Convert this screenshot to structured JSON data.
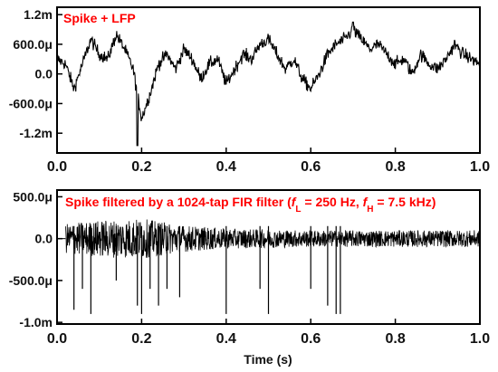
{
  "chart_data": [
    {
      "type": "line",
      "title": "Spike + LFP",
      "xlabel": "",
      "ylabel": "",
      "xlim": [
        0.0,
        1.0
      ],
      "ylim": [
        -0.0016,
        0.00135
      ],
      "x_ticks": [
        0.0,
        0.2,
        0.4,
        0.6,
        0.8,
        1.0
      ],
      "x_tick_labels": [
        "0.0",
        "0.2",
        "0.4",
        "0.6",
        "0.8",
        "1.0"
      ],
      "y_ticks": [
        0.0012,
        0.0006,
        0.0,
        -0.0006,
        -0.0012
      ],
      "y_tick_labels": [
        "1.2m",
        "600.0μ",
        "0.0",
        "-600.0μ",
        "-1.2m"
      ],
      "grid": false,
      "line_color": "#000000",
      "title_color": "#ff0000",
      "series": [
        {
          "x": [
            0.0,
            0.02,
            0.04,
            0.06,
            0.08,
            0.1,
            0.12,
            0.14,
            0.16,
            0.18,
            0.2,
            0.22,
            0.24,
            0.26,
            0.28,
            0.3,
            0.32,
            0.34,
            0.36,
            0.38,
            0.4,
            0.42,
            0.44,
            0.46,
            0.48,
            0.5,
            0.52,
            0.54,
            0.56,
            0.58,
            0.6,
            0.62,
            0.64,
            0.66,
            0.68,
            0.7,
            0.72,
            0.74,
            0.76,
            0.78,
            0.8,
            0.82,
            0.84,
            0.86,
            0.88,
            0.9,
            0.92,
            0.94,
            0.96,
            0.98,
            1.0
          ],
          "values": [
            0.0003,
            0.0002,
            -0.0003,
            0.0002,
            0.0007,
            0.0004,
            0.0003,
            0.0008,
            0.0005,
            0.0001,
            -0.0009,
            -0.0004,
            0.0002,
            0.0004,
            0.0001,
            0.0005,
            0.0003,
            -0.0001,
            0.0002,
            0.0003,
            -0.0002,
            0.0001,
            0.0004,
            0.0003,
            0.0006,
            0.0007,
            0.0004,
            0.0001,
            0.0003,
            -0.0001,
            -0.0003,
            0.0,
            0.0004,
            0.0006,
            0.0007,
            0.0009,
            0.0007,
            0.0005,
            0.0006,
            0.0004,
            0.0002,
            0.0003,
            0.0,
            0.0004,
            0.0002,
            0.0001,
            0.0003,
            0.0006,
            0.0004,
            0.0003,
            0.0002
          ]
        }
      ],
      "notes": {
        "min_excursion": {
          "x": 0.19,
          "y": -0.00145
        },
        "max_excursion": {
          "x": 0.7,
          "y": 0.00105
        }
      }
    },
    {
      "type": "line",
      "title_parts": [
        {
          "text": "Spike filtered by a 1024-tap FIR filter (",
          "style": "normal"
        },
        {
          "text": "f",
          "style": "italic"
        },
        {
          "text": "L",
          "style": "sub"
        },
        {
          "text": " = 250 Hz, ",
          "style": "normal"
        },
        {
          "text": "f",
          "style": "italic"
        },
        {
          "text": "H",
          "style": "sub"
        },
        {
          "text": " = 7.5 kHz)",
          "style": "normal"
        }
      ],
      "xlabel": "Time (s)",
      "ylabel": "",
      "xlim": [
        0.0,
        1.0
      ],
      "ylim": [
        -0.00102,
        0.00058
      ],
      "x_ticks": [
        0.0,
        0.2,
        0.4,
        0.6,
        0.8,
        1.0
      ],
      "x_tick_labels": [
        "0.0",
        "0.2",
        "0.4",
        "0.6",
        "0.8",
        "1.0"
      ],
      "y_ticks": [
        0.0005,
        0.0,
        -0.0005,
        -0.001
      ],
      "y_tick_labels": [
        "500.0μ",
        "0.0",
        "-500.0μ",
        "-1.0m"
      ],
      "grid": false,
      "line_color": "#000000",
      "title_color": "#ff0000",
      "noise_envelope": {
        "x": [
          0.02,
          0.1,
          0.2,
          0.3,
          0.4,
          0.5,
          0.6,
          0.7,
          0.8,
          0.9,
          1.0
        ],
        "amplitude": [
          0.00018,
          0.00022,
          0.00024,
          0.00016,
          0.00012,
          0.00011,
          0.0001,
          0.0001,
          0.0001,
          0.0001,
          0.0001
        ]
      },
      "spikes": [
        {
          "x": 0.04,
          "y": -0.00085
        },
        {
          "x": 0.06,
          "y": -0.0006
        },
        {
          "x": 0.08,
          "y": -0.0009
        },
        {
          "x": 0.14,
          "y": -0.0005
        },
        {
          "x": 0.19,
          "y": -0.0008
        },
        {
          "x": 0.2,
          "y": -0.0009
        },
        {
          "x": 0.22,
          "y": -0.0006
        },
        {
          "x": 0.24,
          "y": -0.0008
        },
        {
          "x": 0.26,
          "y": -0.0006
        },
        {
          "x": 0.29,
          "y": -0.0007
        },
        {
          "x": 0.4,
          "y": -0.0009
        },
        {
          "x": 0.48,
          "y": -0.0006
        },
        {
          "x": 0.5,
          "y": -0.0009
        },
        {
          "x": 0.6,
          "y": -0.0006
        },
        {
          "x": 0.64,
          "y": -0.0008
        },
        {
          "x": 0.66,
          "y": -0.0009
        },
        {
          "x": 0.67,
          "y": -0.0009
        }
      ]
    }
  ]
}
